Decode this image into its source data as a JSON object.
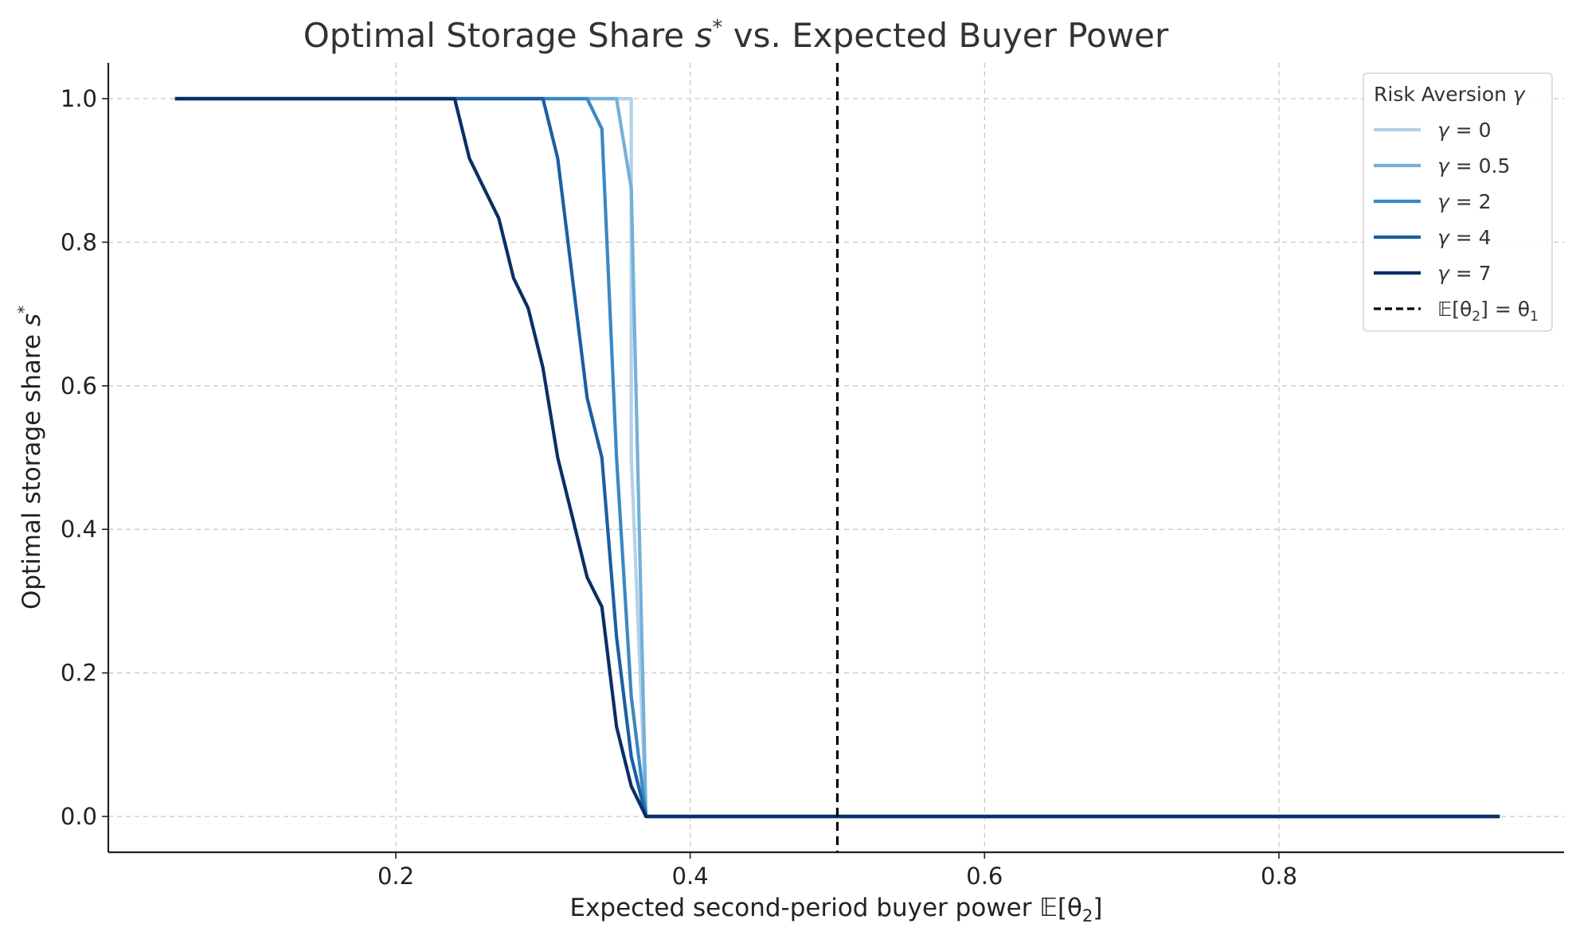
{
  "chart_data": {
    "type": "line",
    "title": "Optimal Storage Share s* vs. Expected Buyer Power",
    "title_parts": [
      "Optimal Storage Share ",
      "s",
      "*",
      " vs. Expected Buyer Power"
    ],
    "xlabel": "Expected second-period buyer power 𝔼[θ₂]",
    "xlabel_parts": [
      "Expected second-period buyer power ",
      "𝔼[θ",
      "2",
      "]"
    ],
    "ylabel": "Optimal storage share s*",
    "ylabel_parts": [
      "Optimal storage share ",
      "s",
      "*"
    ],
    "xlim": [
      0.01,
      1.0
    ],
    "ylim": [
      -0.05,
      1.05
    ],
    "x_ticks": [
      0.2,
      0.4,
      0.6,
      0.8
    ],
    "x_tick_labels": [
      "0.2",
      "0.4",
      "0.6",
      "0.8"
    ],
    "y_ticks": [
      0.0,
      0.2,
      0.4,
      0.6,
      0.8,
      1.0
    ],
    "y_tick_labels": [
      "0.0",
      "0.2",
      "0.4",
      "0.6",
      "0.8",
      "1.0"
    ],
    "grid": true,
    "legend": {
      "title": "Risk Aversion γ",
      "title_parts": [
        "Risk Aversion ",
        "γ"
      ],
      "position": "top-right"
    },
    "series": [
      {
        "name": "γ = 0",
        "legend_parts": [
          "γ",
          " = 0"
        ],
        "color": "#b3d1ea",
        "x": [
          0.05,
          0.36,
          0.36,
          0.37,
          0.95
        ],
        "y": [
          1.0,
          1.0,
          0.5,
          0.0,
          0.0
        ]
      },
      {
        "name": "γ = 0.5",
        "legend_parts": [
          "γ",
          " = 0.5"
        ],
        "color": "#74b0d8",
        "x": [
          0.05,
          0.35,
          0.36,
          0.37,
          0.95
        ],
        "y": [
          1.0,
          1.0,
          0.875,
          0.0,
          0.0
        ]
      },
      {
        "name": "γ = 2",
        "legend_parts": [
          "γ",
          " = 2"
        ],
        "color": "#3c88c3",
        "x": [
          0.05,
          0.33,
          0.34,
          0.35,
          0.36,
          0.37,
          0.95
        ],
        "y": [
          1.0,
          1.0,
          0.958,
          0.5,
          0.167,
          0.0,
          0.0
        ]
      },
      {
        "name": "γ = 4",
        "legend_parts": [
          "γ",
          " = 4"
        ],
        "color": "#1b5fa3",
        "x": [
          0.05,
          0.3,
          0.31,
          0.32,
          0.33,
          0.34,
          0.35,
          0.36,
          0.37,
          0.95
        ],
        "y": [
          1.0,
          1.0,
          0.917,
          0.75,
          0.583,
          0.5,
          0.25,
          0.083,
          0.0,
          0.0
        ]
      },
      {
        "name": "γ = 7",
        "legend_parts": [
          "γ",
          " = 7"
        ],
        "color": "#0a2f65",
        "x": [
          0.05,
          0.24,
          0.25,
          0.26,
          0.27,
          0.28,
          0.29,
          0.3,
          0.31,
          0.32,
          0.33,
          0.34,
          0.35,
          0.36,
          0.37,
          0.95
        ],
        "y": [
          1.0,
          1.0,
          0.917,
          0.875,
          0.833,
          0.75,
          0.708,
          0.625,
          0.5,
          0.417,
          0.333,
          0.292,
          0.125,
          0.042,
          0.0,
          0.0
        ]
      }
    ],
    "reference_line": {
      "name": "𝔼[θ₂] = θ₁",
      "legend_parts": [
        "𝔼[θ",
        "2",
        "] = θ",
        "1"
      ],
      "x": 0.5,
      "color": "#000000",
      "style": "dashed"
    }
  }
}
